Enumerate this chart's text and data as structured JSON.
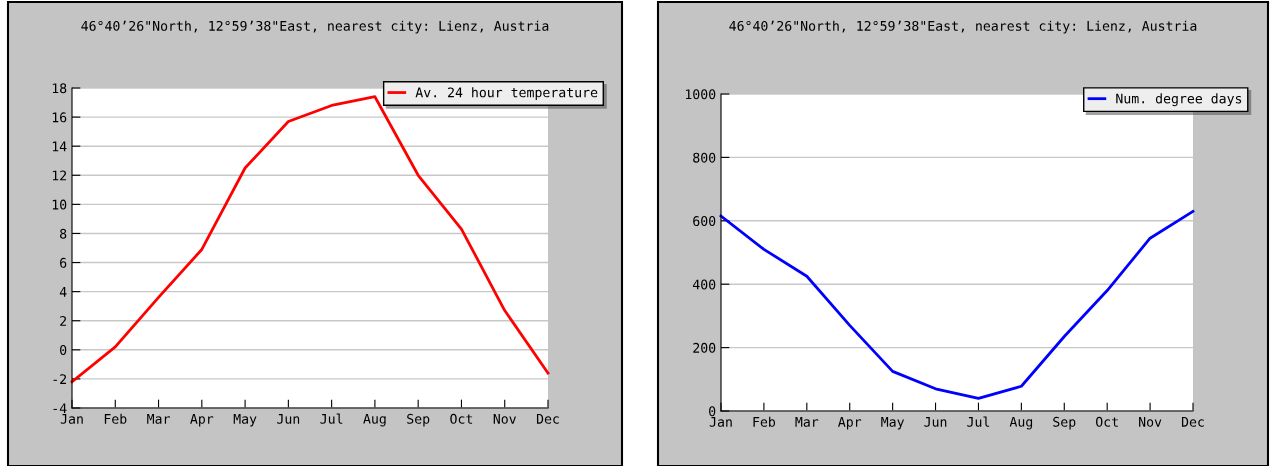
{
  "chart_data": [
    {
      "type": "line",
      "title": "46°40’26\"North, 12°59’38\"East, nearest city: Lienz, Austria",
      "categories": [
        "Jan",
        "Feb",
        "Mar",
        "Apr",
        "May",
        "Jun",
        "Jul",
        "Aug",
        "Sep",
        "Oct",
        "Nov",
        "Dec"
      ],
      "series": [
        {
          "name": "Av. 24 hour temperature",
          "color": "#ff0000",
          "values": [
            -2.2,
            0.2,
            3.6,
            6.9,
            12.5,
            15.7,
            16.8,
            17.4,
            12.0,
            8.3,
            2.7,
            -1.6
          ]
        }
      ],
      "ylim": [
        -4,
        18
      ],
      "yticks": [
        -4,
        -2,
        0,
        2,
        4,
        6,
        8,
        10,
        12,
        14,
        16,
        18
      ],
      "grid": "y",
      "legend": "top right",
      "marker": "none",
      "line_style": "solid"
    },
    {
      "type": "line",
      "title": "46°40’26\"North, 12°59’38\"East, nearest city: Lienz, Austria",
      "categories": [
        "Jan",
        "Feb",
        "Mar",
        "Apr",
        "May",
        "Jun",
        "Jul",
        "Aug",
        "Sep",
        "Oct",
        "Nov",
        "Dec"
      ],
      "series": [
        {
          "name": "Num. degree days",
          "color": "#0000ff",
          "values": [
            615,
            510,
            425,
            270,
            125,
            70,
            40,
            78,
            235,
            380,
            545,
            630
          ]
        }
      ],
      "ylim": [
        0,
        1000
      ],
      "yticks": [
        0,
        200,
        400,
        600,
        800,
        1000
      ],
      "grid": "y",
      "legend": "top right",
      "marker": "none",
      "line_style": "solid"
    }
  ]
}
